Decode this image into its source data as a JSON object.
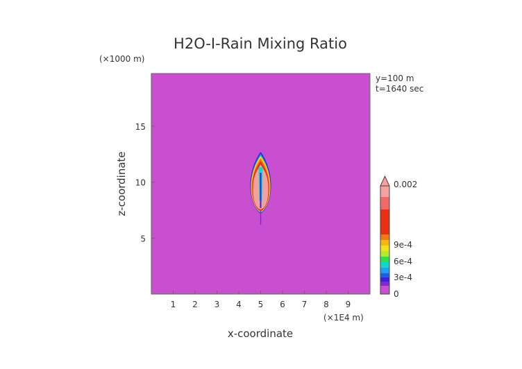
{
  "chart_data": {
    "type": "heatmap",
    "title": "H2O-I-Rain Mixing Ratio",
    "xlabel": "x-coordinate",
    "ylabel": "z-coordinate",
    "x_unit": "(×1E4 m)",
    "y_unit": "(×1000 m)",
    "annotations": [
      "y=100 m",
      "t=1640 sec"
    ],
    "x_ticks": [
      1,
      2,
      3,
      4,
      5,
      6,
      7,
      8,
      9
    ],
    "y_ticks": [
      5,
      10,
      15
    ],
    "xlim": [
      0,
      10
    ],
    "ylim": [
      0,
      19.7
    ],
    "background_color": "#c94fd1",
    "colorbar": {
      "labels": [
        {
          "text": "0.002",
          "value": 0.002
        },
        {
          "text": "9e-4",
          "value": 0.0009
        },
        {
          "text": "6e-4",
          "value": 0.0006
        },
        {
          "text": "3e-4",
          "value": 0.0003
        },
        {
          "text": "0",
          "value": 0
        }
      ],
      "segments": [
        "#c94fd1",
        "#7a2bd6",
        "#3a20d8",
        "#1f5fe8",
        "#1fa0f0",
        "#12d8c8",
        "#2fe04a",
        "#b8e82a",
        "#f2e11a",
        "#f7b416",
        "#f07a12",
        "#e83014",
        "#f06a6a",
        "#f6a0a0"
      ]
    },
    "features": [
      {
        "name": "rain-core",
        "x_center": 5.0,
        "z_bottom": 7.2,
        "z_top": 12.7
      }
    ]
  }
}
